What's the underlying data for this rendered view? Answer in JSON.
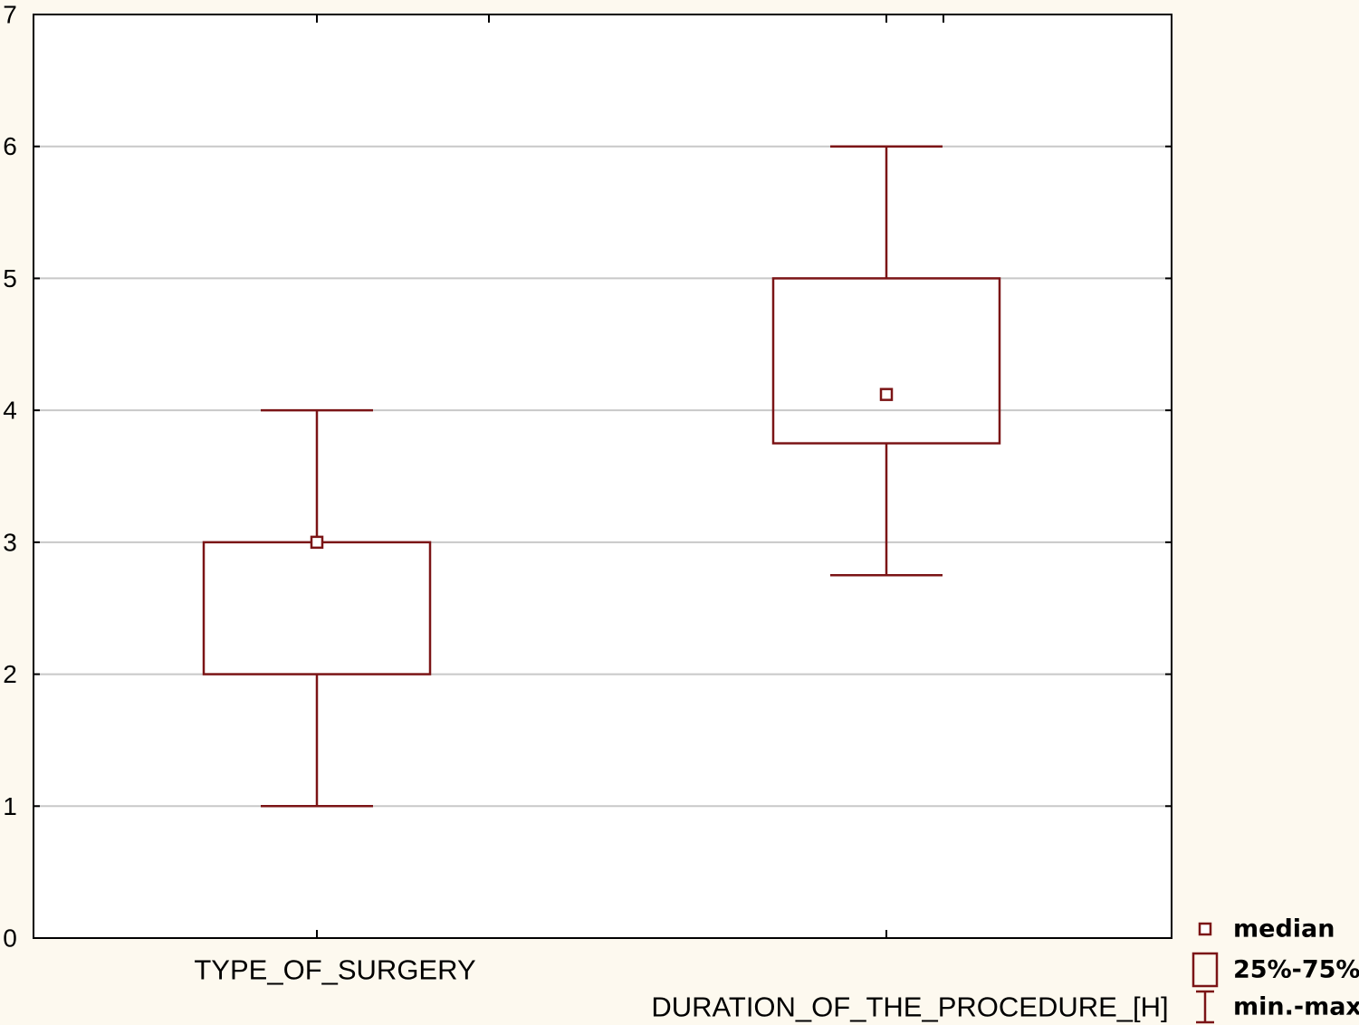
{
  "chart_data": {
    "type": "boxplot",
    "title": "",
    "xlabel": "",
    "ylabel": "",
    "ylim": [
      0,
      7
    ],
    "yticks": [
      0,
      1,
      2,
      3,
      4,
      5,
      6,
      7
    ],
    "grid": true,
    "categories": [
      "TYPE_OF_SURGERY",
      "DURATION_OF_THE_PROCEDURE_[H]"
    ],
    "series": [
      {
        "min": [
          1,
          2.75
        ],
        "q1": [
          2,
          3.75
        ],
        "median": [
          3,
          4.12
        ],
        "q3": [
          3,
          5
        ],
        "max": [
          4,
          6
        ]
      }
    ],
    "legend": {
      "position": "bottom-right",
      "items": [
        {
          "label": "median",
          "symbol": "small-square"
        },
        {
          "label": "25%-75%",
          "symbol": "box"
        },
        {
          "label": "min.-max.",
          "symbol": "whisker"
        }
      ]
    },
    "colors": {
      "stroke": "#7b1416",
      "grid": "#c8c8c8",
      "background": "#fdf9ef"
    }
  }
}
